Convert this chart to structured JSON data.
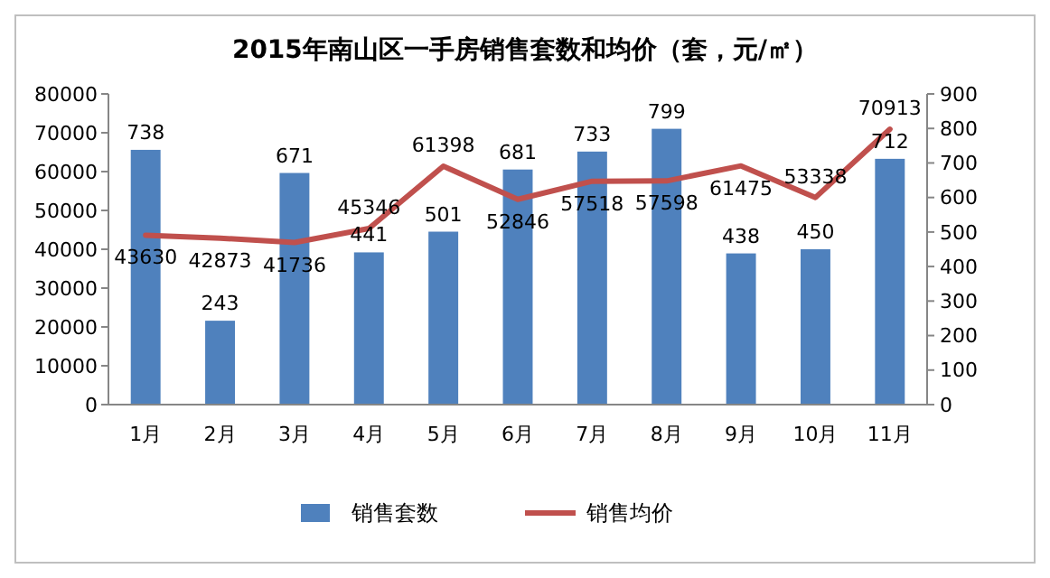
{
  "chart_data": {
    "type": "bar",
    "title": "2015年南山区一手房销售套数和均价（套，元/㎡）",
    "categories": [
      "1月",
      "2月",
      "3月",
      "4月",
      "5月",
      "6月",
      "7月",
      "8月",
      "9月",
      "10月",
      "11月"
    ],
    "series": [
      {
        "name": "销售套数",
        "axis": "y2",
        "color": "#4f81bd",
        "values": [
          738,
          243,
          671,
          441,
          501,
          681,
          733,
          799,
          438,
          450,
          712
        ]
      },
      {
        "name": "销售均价",
        "type": "line",
        "axis": "y",
        "color": "#c0504d",
        "values": [
          43630,
          42873,
          41736,
          45346,
          61398,
          52846,
          57518,
          57598,
          61475,
          53338,
          70913
        ]
      }
    ],
    "ylim": [
      0,
      80000
    ],
    "yticks": [
      0,
      10000,
      20000,
      30000,
      40000,
      50000,
      60000,
      70000,
      80000
    ],
    "y2lim": [
      0,
      900
    ],
    "y2ticks": [
      0,
      100,
      200,
      300,
      400,
      500,
      600,
      700,
      800,
      900
    ],
    "data_labels": true,
    "legend": "bottom",
    "grid": false,
    "marker": "none",
    "line_style": "solid"
  }
}
